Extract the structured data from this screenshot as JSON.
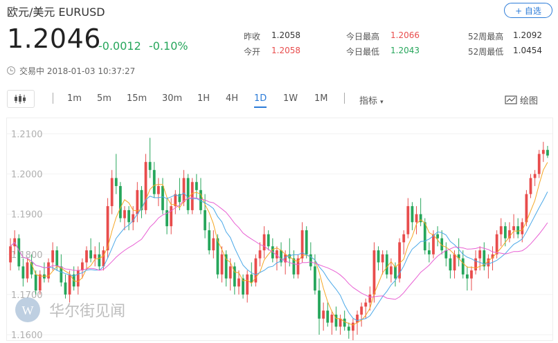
{
  "header": {
    "title": "欧元/美元  EURUSD",
    "follow_label": "+ 自选",
    "price": "1.2046",
    "change": "-0.0012",
    "change_pct": "-0.10%",
    "status": "交易中 2018-01-03 10:37:27"
  },
  "stats": {
    "prev_close_label": "昨收",
    "prev_close": "1.2058",
    "open_label": "今开",
    "open": "1.2058",
    "high_label": "今日最高",
    "high": "1.2066",
    "low_label": "今日最低",
    "low": "1.2043",
    "w52_high_label": "52周最高",
    "w52_high": "1.2092",
    "w52_low_label": "52周最低",
    "w52_low": "1.0454"
  },
  "toolbar": {
    "periods": [
      "1m",
      "5m",
      "15m",
      "30m",
      "1H",
      "4H",
      "1D",
      "1W",
      "1M"
    ],
    "active_period": "1D",
    "indicator_label": "指标",
    "draw_label": "绘图"
  },
  "watermark": {
    "text": "华尔街见闻"
  },
  "colors": {
    "up": "#e84c4c",
    "down": "#26a65b",
    "ma5": "#f5a623",
    "ma10": "#4aa8e8",
    "ma20": "#e85fd3",
    "accent": "#2b7bd8"
  },
  "chart_data": {
    "type": "candlestick",
    "ylim": [
      1.16,
      1.2125
    ],
    "y_ticks": [
      "1.2100",
      "1.2000",
      "1.1900",
      "1.1800",
      "1.1700",
      "1.1600"
    ],
    "ohlc": [
      [
        1.178,
        1.184,
        1.176,
        1.182
      ],
      [
        1.182,
        1.186,
        1.18,
        1.184
      ],
      [
        1.184,
        1.185,
        1.176,
        1.177
      ],
      [
        1.177,
        1.179,
        1.172,
        1.174
      ],
      [
        1.174,
        1.179,
        1.173,
        1.178
      ],
      [
        1.178,
        1.18,
        1.174,
        1.175
      ],
      [
        1.175,
        1.176,
        1.17,
        1.171
      ],
      [
        1.171,
        1.176,
        1.17,
        1.175
      ],
      [
        1.175,
        1.178,
        1.173,
        1.174
      ],
      [
        1.174,
        1.179,
        1.173,
        1.178
      ],
      [
        1.178,
        1.183,
        1.176,
        1.181
      ],
      [
        1.181,
        1.182,
        1.176,
        1.177
      ],
      [
        1.177,
        1.18,
        1.172,
        1.173
      ],
      [
        1.173,
        1.175,
        1.169,
        1.17
      ],
      [
        1.17,
        1.176,
        1.168,
        1.175
      ],
      [
        1.175,
        1.177,
        1.171,
        1.172
      ],
      [
        1.172,
        1.177,
        1.17,
        1.176
      ],
      [
        1.176,
        1.179,
        1.174,
        1.178
      ],
      [
        1.178,
        1.182,
        1.176,
        1.181
      ],
      [
        1.181,
        1.184,
        1.178,
        1.179
      ],
      [
        1.179,
        1.182,
        1.177,
        1.18
      ],
      [
        1.18,
        1.183,
        1.176,
        1.177
      ],
      [
        1.177,
        1.182,
        1.176,
        1.181
      ],
      [
        1.181,
        1.194,
        1.179,
        1.192
      ],
      [
        1.192,
        1.201,
        1.19,
        1.199
      ],
      [
        1.199,
        1.205,
        1.195,
        1.197
      ],
      [
        1.197,
        1.198,
        1.188,
        1.189
      ],
      [
        1.189,
        1.192,
        1.186,
        1.191
      ],
      [
        1.191,
        1.192,
        1.186,
        1.188
      ],
      [
        1.188,
        1.192,
        1.186,
        1.19
      ],
      [
        1.19,
        1.198,
        1.188,
        1.196
      ],
      [
        1.196,
        1.197,
        1.189,
        1.191
      ],
      [
        1.191,
        1.205,
        1.19,
        1.203
      ],
      [
        1.203,
        1.209,
        1.199,
        1.201
      ],
      [
        1.201,
        1.203,
        1.194,
        1.195
      ],
      [
        1.195,
        1.199,
        1.192,
        1.197
      ],
      [
        1.197,
        1.199,
        1.19,
        1.191
      ],
      [
        1.191,
        1.194,
        1.185,
        1.187
      ],
      [
        1.187,
        1.194,
        1.185,
        1.192
      ],
      [
        1.192,
        1.196,
        1.19,
        1.195
      ],
      [
        1.195,
        1.199,
        1.191,
        1.193
      ],
      [
        1.193,
        1.201,
        1.192,
        1.199
      ],
      [
        1.199,
        1.2,
        1.19,
        1.191
      ],
      [
        1.191,
        1.199,
        1.19,
        1.198
      ],
      [
        1.198,
        1.2,
        1.194,
        1.196
      ],
      [
        1.196,
        1.199,
        1.19,
        1.191
      ],
      [
        1.191,
        1.195,
        1.184,
        1.186
      ],
      [
        1.186,
        1.188,
        1.18,
        1.181
      ],
      [
        1.181,
        1.186,
        1.179,
        1.184
      ],
      [
        1.184,
        1.185,
        1.174,
        1.175
      ],
      [
        1.175,
        1.182,
        1.173,
        1.18
      ],
      [
        1.18,
        1.181,
        1.172,
        1.174
      ],
      [
        1.174,
        1.179,
        1.171,
        1.177
      ],
      [
        1.177,
        1.178,
        1.17,
        1.172
      ],
      [
        1.172,
        1.176,
        1.17,
        1.174
      ],
      [
        1.174,
        1.175,
        1.169,
        1.17
      ],
      [
        1.17,
        1.176,
        1.168,
        1.175
      ],
      [
        1.175,
        1.178,
        1.172,
        1.173
      ],
      [
        1.173,
        1.18,
        1.172,
        1.179
      ],
      [
        1.179,
        1.183,
        1.177,
        1.181
      ],
      [
        1.181,
        1.187,
        1.179,
        1.185
      ],
      [
        1.185,
        1.186,
        1.181,
        1.182
      ],
      [
        1.182,
        1.184,
        1.178,
        1.179
      ],
      [
        1.179,
        1.182,
        1.176,
        1.181
      ],
      [
        1.181,
        1.183,
        1.177,
        1.178
      ],
      [
        1.178,
        1.181,
        1.175,
        1.18
      ],
      [
        1.18,
        1.184,
        1.177,
        1.179
      ],
      [
        1.179,
        1.181,
        1.174,
        1.175
      ],
      [
        1.175,
        1.18,
        1.174,
        1.179
      ],
      [
        1.179,
        1.188,
        1.178,
        1.186
      ],
      [
        1.186,
        1.187,
        1.179,
        1.18
      ],
      [
        1.18,
        1.183,
        1.176,
        1.177
      ],
      [
        1.177,
        1.18,
        1.17,
        1.171
      ],
      [
        1.171,
        1.174,
        1.16,
        1.164
      ],
      [
        1.164,
        1.168,
        1.161,
        1.166
      ],
      [
        1.166,
        1.168,
        1.162,
        1.163
      ],
      [
        1.163,
        1.166,
        1.16,
        1.165
      ],
      [
        1.165,
        1.167,
        1.161,
        1.162
      ],
      [
        1.162,
        1.165,
        1.16,
        1.164
      ],
      [
        1.164,
        1.166,
        1.161,
        1.162
      ],
      [
        1.162,
        1.163,
        1.159,
        1.161
      ],
      [
        1.161,
        1.164,
        1.158,
        1.163
      ],
      [
        1.163,
        1.166,
        1.16,
        1.165
      ],
      [
        1.165,
        1.168,
        1.162,
        1.167
      ],
      [
        1.167,
        1.169,
        1.164,
        1.168
      ],
      [
        1.168,
        1.172,
        1.166,
        1.17
      ],
      [
        1.17,
        1.183,
        1.168,
        1.181
      ],
      [
        1.181,
        1.182,
        1.176,
        1.178
      ],
      [
        1.178,
        1.181,
        1.175,
        1.18
      ],
      [
        1.18,
        1.181,
        1.174,
        1.175
      ],
      [
        1.175,
        1.179,
        1.173,
        1.177
      ],
      [
        1.177,
        1.178,
        1.172,
        1.174
      ],
      [
        1.174,
        1.184,
        1.173,
        1.183
      ],
      [
        1.183,
        1.186,
        1.18,
        1.185
      ],
      [
        1.185,
        1.194,
        1.184,
        1.192
      ],
      [
        1.192,
        1.193,
        1.186,
        1.188
      ],
      [
        1.188,
        1.192,
        1.185,
        1.19
      ],
      [
        1.19,
        1.194,
        1.187,
        1.188
      ],
      [
        1.188,
        1.189,
        1.18,
        1.181
      ],
      [
        1.181,
        1.183,
        1.178,
        1.18
      ],
      [
        1.18,
        1.186,
        1.179,
        1.185
      ],
      [
        1.185,
        1.187,
        1.182,
        1.184
      ],
      [
        1.184,
        1.186,
        1.18,
        1.181
      ],
      [
        1.181,
        1.183,
        1.177,
        1.179
      ],
      [
        1.179,
        1.18,
        1.174,
        1.176
      ],
      [
        1.176,
        1.181,
        1.174,
        1.18
      ],
      [
        1.18,
        1.184,
        1.177,
        1.179
      ],
      [
        1.179,
        1.181,
        1.174,
        1.175
      ],
      [
        1.175,
        1.177,
        1.171,
        1.174
      ],
      [
        1.174,
        1.177,
        1.171,
        1.176
      ],
      [
        1.176,
        1.181,
        1.175,
        1.179
      ],
      [
        1.179,
        1.182,
        1.176,
        1.181
      ],
      [
        1.181,
        1.183,
        1.176,
        1.177
      ],
      [
        1.177,
        1.18,
        1.174,
        1.179
      ],
      [
        1.179,
        1.182,
        1.176,
        1.18
      ],
      [
        1.18,
        1.186,
        1.179,
        1.185
      ],
      [
        1.185,
        1.189,
        1.182,
        1.187
      ],
      [
        1.187,
        1.188,
        1.182,
        1.184
      ],
      [
        1.184,
        1.188,
        1.183,
        1.186
      ],
      [
        1.186,
        1.19,
        1.184,
        1.187
      ],
      [
        1.187,
        1.189,
        1.184,
        1.185
      ],
      [
        1.185,
        1.189,
        1.183,
        1.188
      ],
      [
        1.188,
        1.196,
        1.187,
        1.195
      ],
      [
        1.195,
        1.2,
        1.194,
        1.199
      ],
      [
        1.199,
        1.201,
        1.197,
        1.2
      ],
      [
        1.2,
        1.206,
        1.199,
        1.205
      ],
      [
        1.205,
        1.208,
        1.203,
        1.206
      ],
      [
        1.206,
        1.207,
        1.204,
        1.2046
      ]
    ]
  }
}
